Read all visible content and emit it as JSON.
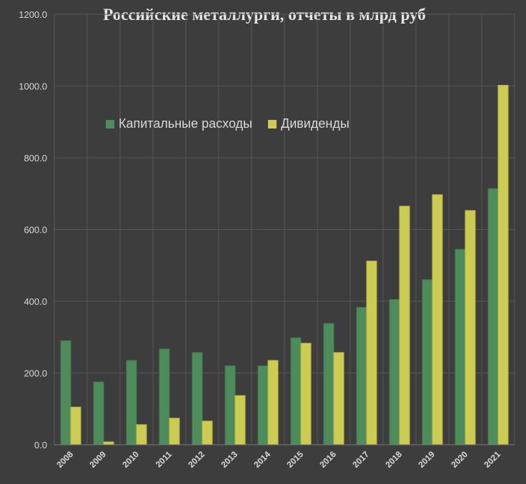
{
  "chart_data": {
    "type": "bar",
    "title": "Российские металлурги, отчеты в млрд руб",
    "categories": [
      "2008",
      "2009",
      "2010",
      "2011",
      "2012",
      "2013",
      "2014",
      "2015",
      "2016",
      "2017",
      "2018",
      "2019",
      "2020",
      "2021"
    ],
    "series": [
      {
        "name": "Капитальные расходы",
        "color": "#4f8c5c",
        "values": [
          290,
          175,
          235,
          267,
          257,
          220,
          220,
          298,
          338,
          383,
          405,
          460,
          545,
          714
        ]
      },
      {
        "name": "Дивиденды",
        "color": "#cccc55",
        "values": [
          105,
          8,
          56,
          74,
          66,
          137,
          235,
          283,
          257,
          512,
          665,
          697,
          653,
          1002
        ]
      }
    ],
    "yticks": [
      "0.0",
      "200.0",
      "400.0",
      "600.0",
      "800.0",
      "1000.0",
      "1200.0"
    ],
    "ylim": [
      0,
      1200
    ],
    "grid": true,
    "legend_position": "top-left"
  }
}
